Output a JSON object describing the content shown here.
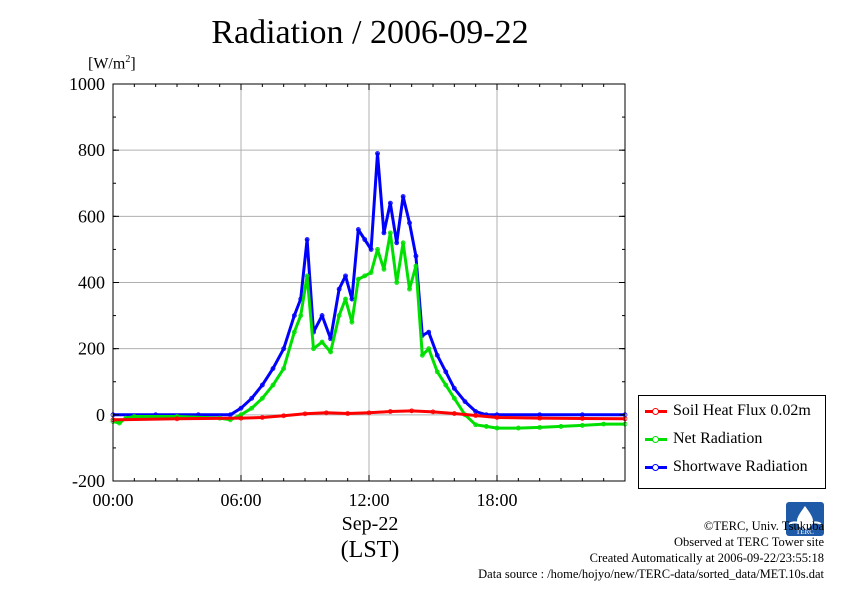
{
  "title": "Radiation / 2006-09-22",
  "unit_label": "[W/m",
  "unit_exp": "2",
  "unit_close": "]",
  "x_date": "Sep-22",
  "x_lst": "(LST)",
  "credits": {
    "line1": "©TERC, Univ. Tsukuba",
    "line2": "Observed at TERC Tower site",
    "line3": "Created Automatically at 2006-09-22/23:55:18",
    "line4": "Data source : /home/hojyo/new/TERC-data/sorted_data/MET.10s.dat"
  },
  "logo_text": "TERC",
  "legend": [
    {
      "label": "Soil Heat Flux 0.02m",
      "color": "#ff0000"
    },
    {
      "label": "Net Radiation",
      "color": "#00e000"
    },
    {
      "label": "Shortwave Radiation",
      "color": "#0000ff"
    }
  ],
  "chart_data": {
    "type": "line",
    "title": "Radiation / 2006-09-22",
    "ylabel": "[W/m2]",
    "xlabel": "(LST)",
    "xlim": [
      0,
      24
    ],
    "ylim": [
      -200,
      1000
    ],
    "x_ticks": [
      {
        "v": 0,
        "label": "00:00"
      },
      {
        "v": 6,
        "label": "06:00"
      },
      {
        "v": 12,
        "label": "12:00"
      },
      {
        "v": 18,
        "label": "18:00"
      }
    ],
    "y_ticks": [
      -200,
      0,
      200,
      400,
      600,
      800,
      1000
    ],
    "grid": true,
    "legend_position": "right-bottom",
    "series": [
      {
        "name": "Soil Heat Flux 0.02m",
        "color": "#ff0000",
        "x": [
          0,
          3,
          6,
          7,
          8,
          9,
          10,
          11,
          12,
          13,
          14,
          15,
          16,
          17,
          18,
          20,
          22,
          24
        ],
        "y": [
          -15,
          -12,
          -10,
          -8,
          -3,
          3,
          6,
          4,
          6,
          10,
          12,
          9,
          4,
          -2,
          -8,
          -10,
          -11,
          -12
        ]
      },
      {
        "name": "Net Radiation",
        "color": "#00e000",
        "x": [
          0,
          0.3,
          0.6,
          1,
          3,
          5,
          5.5,
          6,
          6.5,
          7,
          7.5,
          8,
          8.5,
          8.8,
          9.1,
          9.4,
          9.8,
          10.2,
          10.6,
          10.9,
          11.2,
          11.5,
          11.8,
          12.1,
          12.4,
          12.7,
          13,
          13.3,
          13.6,
          13.9,
          14.2,
          14.5,
          14.8,
          15.2,
          15.6,
          16,
          16.5,
          17,
          17.5,
          18,
          19,
          20,
          21,
          22,
          23,
          24
        ],
        "y": [
          -20,
          -25,
          -10,
          -5,
          -5,
          -10,
          -15,
          0,
          20,
          50,
          90,
          140,
          250,
          300,
          420,
          200,
          220,
          190,
          300,
          350,
          280,
          410,
          420,
          430,
          500,
          440,
          550,
          400,
          520,
          380,
          450,
          180,
          200,
          130,
          90,
          50,
          0,
          -30,
          -35,
          -40,
          -40,
          -38,
          -35,
          -32,
          -28,
          -28
        ]
      },
      {
        "name": "Shortwave Radiation",
        "color": "#0000ff",
        "x": [
          0,
          2,
          4,
          5.5,
          6,
          6.5,
          7,
          7.5,
          8,
          8.5,
          8.8,
          9.1,
          9.4,
          9.8,
          10.2,
          10.6,
          10.9,
          11.2,
          11.5,
          11.8,
          12.1,
          12.4,
          12.7,
          13,
          13.3,
          13.6,
          13.9,
          14.2,
          14.5,
          14.8,
          15.2,
          15.6,
          16,
          16.5,
          17,
          17.5,
          18,
          20,
          22,
          24
        ],
        "y": [
          0,
          0,
          0,
          0,
          20,
          50,
          90,
          140,
          200,
          300,
          350,
          530,
          250,
          300,
          230,
          380,
          420,
          350,
          560,
          530,
          500,
          790,
          550,
          640,
          520,
          660,
          580,
          480,
          240,
          250,
          180,
          130,
          80,
          40,
          10,
          0,
          0,
          0,
          0,
          0
        ]
      }
    ]
  }
}
